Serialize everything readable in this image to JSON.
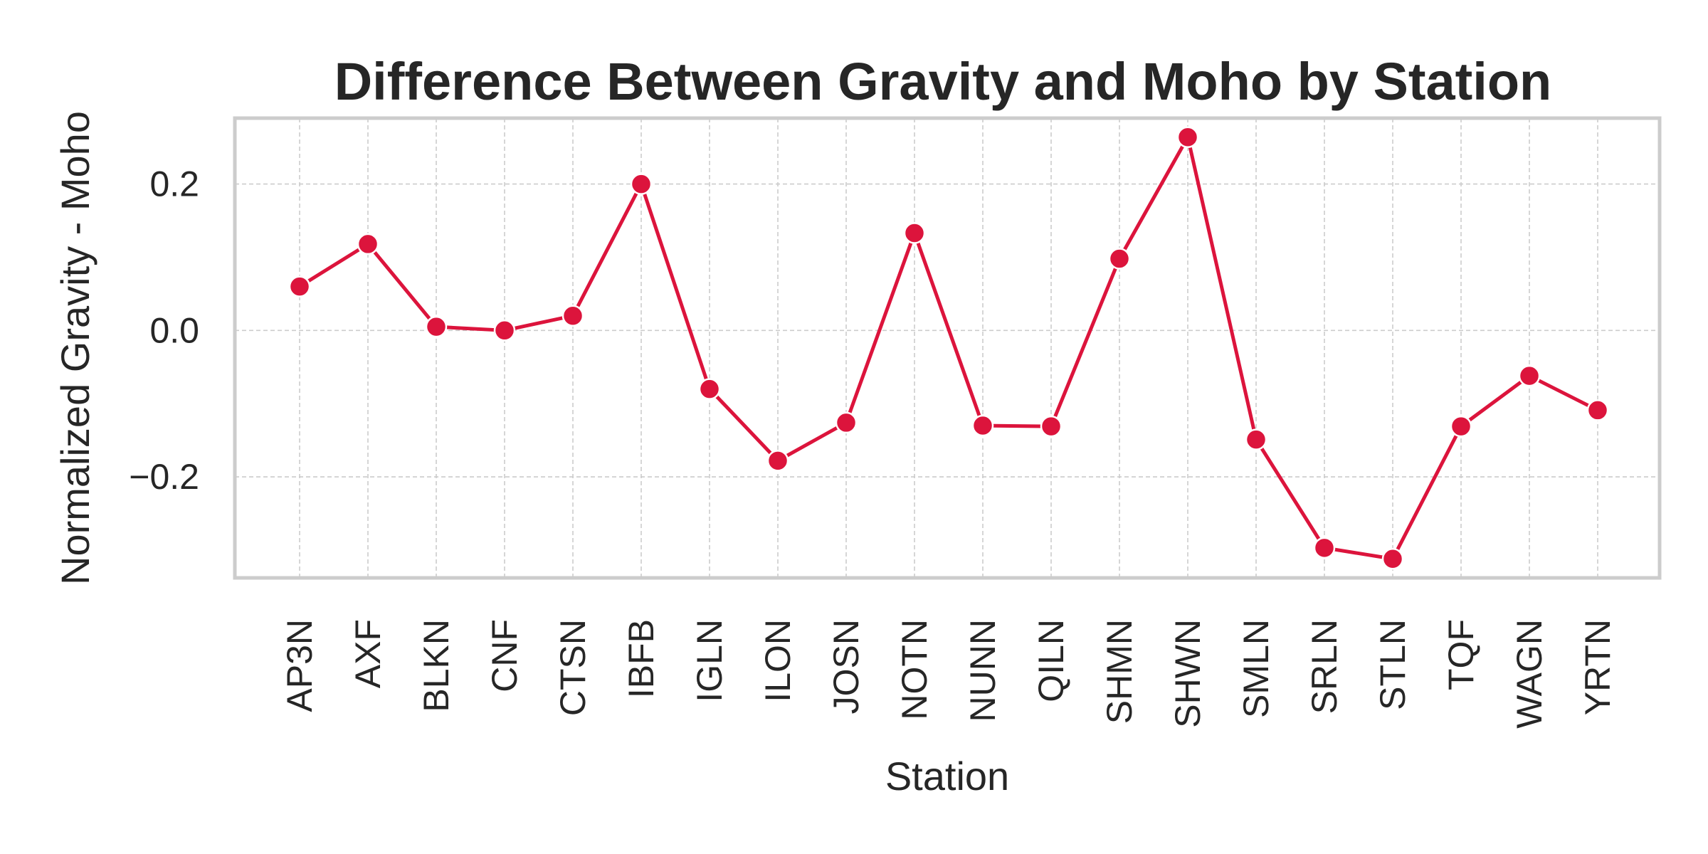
{
  "chart_data": {
    "type": "line",
    "title": "Difference Between Gravity and Moho by Station",
    "xlabel": "Station",
    "ylabel": "Normalized Gravity - Moho",
    "categories": [
      "AP3N",
      "AXF",
      "BLKN",
      "CNF",
      "CTSN",
      "IBFB",
      "IGLN",
      "ILON",
      "JOSN",
      "NOTN",
      "NUNN",
      "QILN",
      "SHMN",
      "SHWN",
      "SMLN",
      "SRLN",
      "STLN",
      "TQF",
      "WAGN",
      "YRTN"
    ],
    "values": [
      0.06,
      0.118,
      0.005,
      0.0,
      0.02,
      0.2,
      -0.08,
      -0.178,
      -0.126,
      0.133,
      -0.13,
      -0.131,
      0.098,
      0.264,
      -0.149,
      -0.297,
      -0.312,
      -0.131,
      -0.062,
      -0.109
    ],
    "ylim": [
      -0.338,
      0.29
    ],
    "yticks": [
      -0.2,
      0.0,
      0.2
    ],
    "ytick_labels": [
      "−0.2",
      "0.0",
      "0.2"
    ],
    "grid": true,
    "line_color": "#dc143c",
    "marker_color": "#dc143c"
  }
}
